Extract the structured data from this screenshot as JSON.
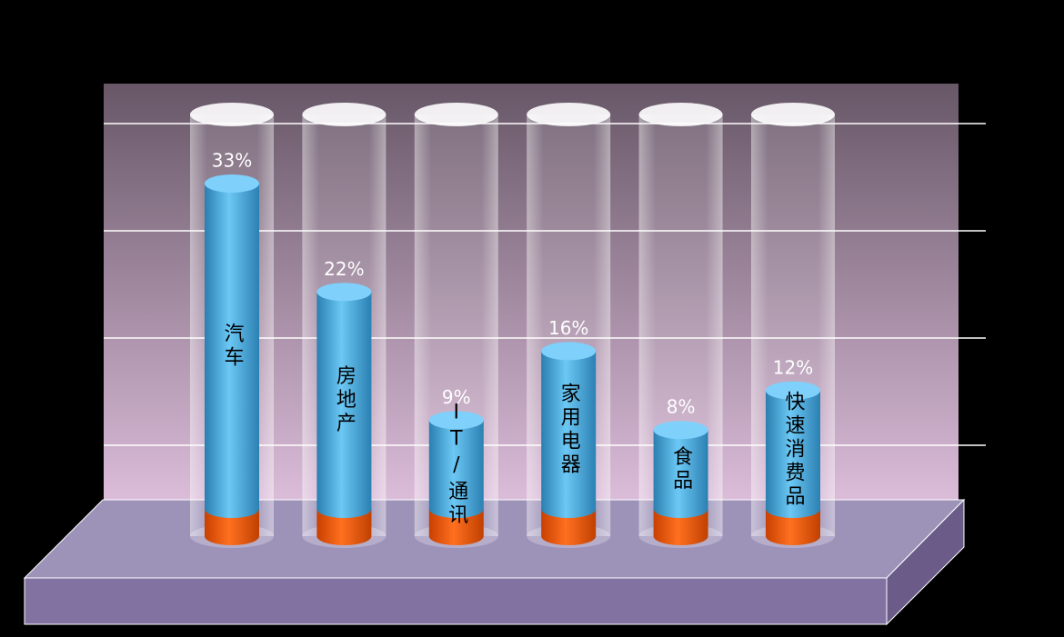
{
  "chart_data": {
    "type": "bar",
    "categories": [
      "汽车",
      "房地产",
      "IT/通讯",
      "家用电器",
      "食品",
      "快速消费品"
    ],
    "values": [
      33,
      22,
      9,
      16,
      8,
      12
    ],
    "value_labels": [
      "33%",
      "22%",
      "9%",
      "16%",
      "8%",
      "12%"
    ],
    "ylim": [
      0,
      40
    ],
    "color": "#4fb0e0"
  }
}
